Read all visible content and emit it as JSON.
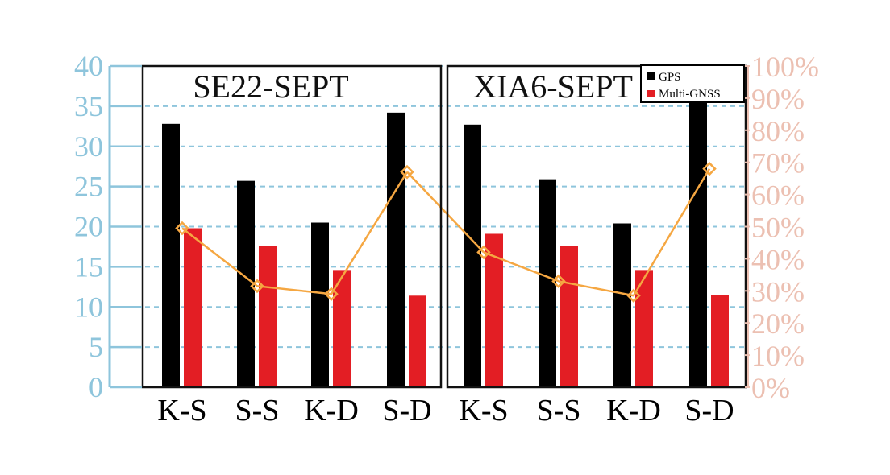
{
  "colors": {
    "gps": "#000000",
    "multi_gnss": "#e31e24",
    "ratio_line": "#f5a742",
    "left_axis": "#8ec5dc",
    "right_axis": "#ecc0b2",
    "grid": "#8ec5dc"
  },
  "chart_data": {
    "type": "bar",
    "ylim": [
      0,
      40
    ],
    "yticks": [
      "0",
      "5",
      "10",
      "15",
      "20",
      "25",
      "30",
      "35",
      "40"
    ],
    "y2lim": [
      0,
      100
    ],
    "y2ticks": [
      "0%",
      "10%",
      "20%",
      "30%",
      "40%",
      "50%",
      "60%",
      "70%",
      "80%",
      "90%",
      "100%"
    ],
    "grid": true,
    "legend_position": "top-right",
    "legend": [
      "GPS",
      "Multi-GNSS"
    ],
    "panels": [
      {
        "title": "SE22-SEPT",
        "categories": [
          "K-S",
          "S-S",
          "K-D",
          "S-D"
        ],
        "series": [
          {
            "name": "GPS",
            "values": [
              32.8,
              25.7,
              20.5,
              34.2
            ]
          },
          {
            "name": "Multi-GNSS",
            "values": [
              19.8,
              17.6,
              14.6,
              11.4
            ]
          }
        ],
        "ratio_percent": [
          49.5,
          31.5,
          29,
          67
        ]
      },
      {
        "title": "XIA6-SEPT",
        "categories": [
          "K-S",
          "S-S",
          "K-D",
          "S-D"
        ],
        "series": [
          {
            "name": "GPS",
            "values": [
              32.7,
              25.9,
              20.4,
              35.5
            ]
          },
          {
            "name": "Multi-GNSS",
            "values": [
              19.1,
              17.6,
              14.6,
              11.5
            ]
          }
        ],
        "ratio_percent": [
          42,
          33,
          28.5,
          68
        ]
      }
    ]
  }
}
